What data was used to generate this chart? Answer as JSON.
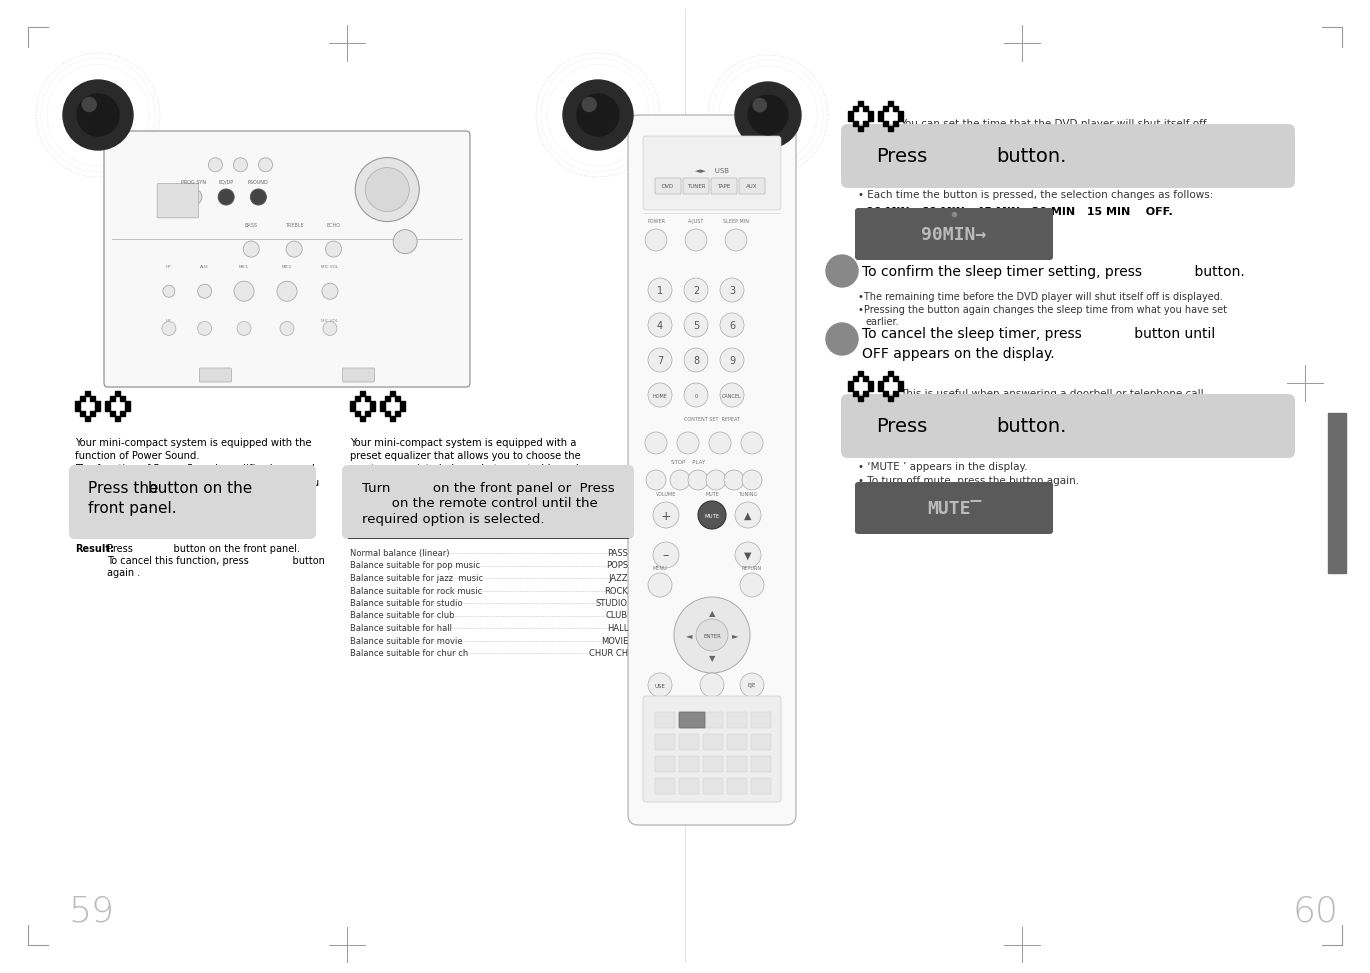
{
  "bg_color": "#ffffff",
  "left_page_num": "59",
  "right_page_num": "60",
  "left_speaker_desc1": "Your mini-compact system is equipped with the\nfunction of Power Sound.\nThe function of Power Sound amplifies bass and\nimproves high key or bass twice as much for you\nto appreciate powerful real sound.",
  "left_speaker_desc2": "Your mini-compact system is equipped with a\npreset equalizer that allows you to choose the\nmost appropriate balance between treble and\nbass frequencies, according to the type of\nmusic you are listening to.",
  "press_box1_line1": "Press the                   button on the",
  "press_box1_line2": "front panel.",
  "result_line1": "Result: Press             button on the front panel.",
  "result_line2": "         To cancel this function, press              button",
  "result_line3": "         again .",
  "turn_box_line1": "Turn          on the front panel or  Press",
  "turn_box_line2": "       on the remote control until the",
  "turn_box_line3": "required option is selected.",
  "eq_items": [
    [
      "Normal balance (linear)",
      "PASS"
    ],
    [
      "Balance suitable for pop music",
      "POPS"
    ],
    [
      "Balance suitable for jazz  music",
      "JAZZ"
    ],
    [
      "Balance suitable for rock music",
      "ROCK"
    ],
    [
      "Balance suitable for studio",
      "STUDIO"
    ],
    [
      "Balance suitable for club",
      "CLUB"
    ],
    [
      "Balance suitable for hall",
      "HALL"
    ],
    [
      "Balance suitable for movie",
      "MOVIE"
    ],
    [
      "Balance suitable for chur ch",
      "CHUR CH"
    ]
  ],
  "right_intro": "You can set the time that the DVD player will shut itself off.",
  "sleep_bullet1": "Each time the button is pressed, the selection changes as follows:",
  "sleep_times": "90 MIN    60 MIN    45 MIN    30 MIN    15 MIN     OFF.",
  "display_bg": "#5a5a5a",
  "display_fg": "#aaaaaa",
  "confirm_text": "To confirm the sleep timer setting, press            button.",
  "confirm_b1": "•The remaining time before the DVD player will shut itself off is displayed.",
  "confirm_b2": "•Pressing the button again changes the sleep time from what you have set",
  "confirm_b3": "  earlier.",
  "cancel_line1": "To cancel the sleep timer, press            button until",
  "cancel_line2": "OFF appears on the display.",
  "mute_intro": "This is useful when answering a doorbell or telephone call.",
  "mute_b1": "• ‘MUTE ’ appears in the display.",
  "mute_b2": "• To turn off mute, press the button again.",
  "box_bg": "#d0d0d0",
  "confirm_circle_bg": "#888888",
  "page_tab_color": "#6b6b6b"
}
